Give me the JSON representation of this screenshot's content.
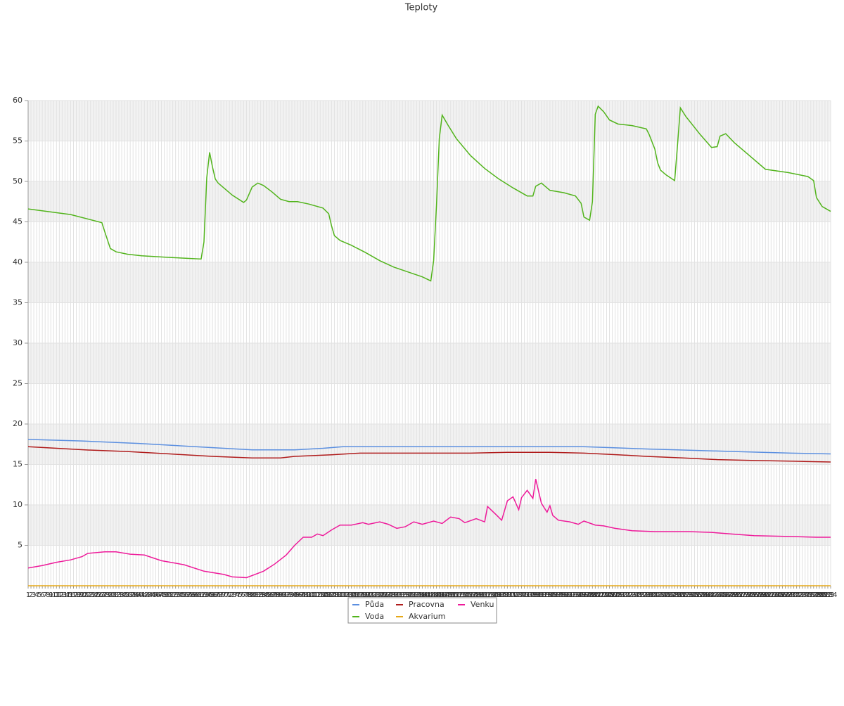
{
  "chart_data": {
    "type": "line",
    "title": "Teploty",
    "xlim": [
      1,
      284
    ],
    "xticks": [
      1,
      2,
      3,
      4,
      5,
      6,
      7,
      8,
      9,
      10,
      11,
      12,
      13,
      14,
      15,
      16,
      17,
      18,
      19,
      20,
      21,
      22,
      23,
      24,
      25,
      26,
      27,
      28,
      29,
      30,
      31,
      32,
      33,
      34,
      35,
      36,
      37,
      38,
      39,
      40,
      41,
      42,
      43,
      44,
      45,
      46,
      47,
      48,
      49,
      50,
      51,
      52,
      53,
      54,
      55,
      56,
      57,
      58,
      59,
      60,
      61,
      62,
      63,
      64,
      65,
      66,
      67,
      68,
      69,
      70,
      71,
      72,
      73,
      74,
      75,
      76,
      77,
      78,
      79,
      80,
      81,
      82,
      83,
      84,
      85,
      86,
      87,
      88,
      89,
      90,
      91,
      92,
      93,
      94,
      95,
      96,
      97,
      98,
      99,
      100,
      101,
      102,
      103,
      104,
      105,
      106,
      107,
      108,
      109,
      110,
      111,
      112,
      113,
      114,
      115,
      116,
      117,
      118,
      119,
      120,
      121,
      122,
      123,
      124,
      125,
      126,
      127,
      128,
      129,
      130,
      131,
      132,
      133,
      134,
      135,
      136,
      137,
      138,
      139,
      140,
      141,
      142,
      143,
      144,
      145,
      146,
      147,
      148,
      149,
      150,
      151,
      152,
      153,
      154,
      155,
      156,
      157,
      158,
      159,
      160,
      161,
      162,
      163,
      164,
      165,
      166,
      167,
      168,
      169,
      170,
      171,
      172,
      173,
      174,
      175,
      176,
      177,
      178,
      179,
      180,
      181,
      182,
      183,
      184,
      185,
      186,
      187,
      188,
      189,
      190,
      191,
      192,
      193,
      194,
      195,
      196,
      197,
      198,
      199,
      200,
      201,
      202,
      203,
      204,
      205,
      206,
      207,
      208,
      209,
      210,
      211,
      212,
      213,
      214,
      215,
      216,
      217,
      218,
      219,
      220,
      221,
      222,
      223,
      224,
      225,
      226,
      227,
      228,
      229,
      230,
      231,
      232,
      233,
      234,
      235,
      236,
      237,
      238,
      239,
      240,
      241,
      242,
      243,
      244,
      245,
      246,
      247,
      248,
      249,
      250,
      251,
      252,
      253,
      254,
      255,
      256,
      257,
      258,
      259,
      260,
      261,
      262,
      263,
      264,
      265,
      266,
      267,
      268,
      269,
      270,
      271,
      272,
      273,
      274,
      275,
      276,
      277,
      278,
      279,
      280,
      281,
      282,
      283,
      284
    ],
    "ylim": [
      0,
      60
    ],
    "yticks": [
      5,
      10,
      15,
      20,
      25,
      30,
      35,
      40,
      45,
      50,
      55,
      60
    ],
    "grid": true,
    "legend": "bottom",
    "series": [
      {
        "name": "Půda",
        "color": "#5b8fe0",
        "x": [
          1,
          20,
          40,
          65,
          80,
          95,
          105,
          112,
          197,
          220,
          230,
          250,
          270,
          284
        ],
        "values": [
          18.1,
          17.9,
          17.6,
          17.1,
          16.8,
          16.8,
          17.0,
          17.2,
          17.2,
          16.9,
          16.8,
          16.6,
          16.4,
          16.3
        ]
      },
      {
        "name": "Pracovna",
        "color": "#b01c1c",
        "x": [
          1,
          21,
          36,
          51,
          66,
          80,
          90,
          95,
          108,
          118,
          157,
          170,
          185,
          197,
          209,
          219,
          232,
          244,
          256,
          271,
          284
        ],
        "values": [
          17.2,
          16.8,
          16.6,
          16.3,
          16.0,
          15.8,
          15.8,
          16.0,
          16.2,
          16.4,
          16.4,
          16.5,
          16.5,
          16.4,
          16.2,
          16.0,
          15.8,
          15.6,
          15.5,
          15.4,
          15.3
        ]
      },
      {
        "name": "Venku",
        "color": "#ee1a9a",
        "x": [
          1,
          6,
          11,
          16,
          20,
          22,
          28,
          32,
          37,
          42,
          48,
          56,
          63,
          70,
          73,
          78,
          81,
          84,
          88,
          92,
          95,
          98,
          101,
          103,
          105,
          108,
          111,
          115,
          119,
          121,
          125,
          128,
          131,
          134,
          137,
          140,
          144,
          147,
          150,
          153,
          155,
          159,
          162,
          163,
          166,
          168,
          170,
          172,
          174,
          175,
          177,
          179,
          180,
          182,
          184,
          185,
          186,
          188,
          192,
          195,
          197,
          201,
          204,
          208,
          214,
          222,
          234,
          242,
          249,
          257,
          269,
          279,
          284
        ],
        "values": [
          2.2,
          2.5,
          2.9,
          3.2,
          3.6,
          4.0,
          4.2,
          4.2,
          3.9,
          3.8,
          3.1,
          2.6,
          1.8,
          1.4,
          1.1,
          1.0,
          1.4,
          1.8,
          2.7,
          3.8,
          5.0,
          6.0,
          6.0,
          6.4,
          6.2,
          6.9,
          7.5,
          7.5,
          7.8,
          7.6,
          7.9,
          7.6,
          7.1,
          7.3,
          7.9,
          7.6,
          8.0,
          7.7,
          8.5,
          8.3,
          7.8,
          8.3,
          7.9,
          9.8,
          8.8,
          8.1,
          10.5,
          11.0,
          9.4,
          10.9,
          11.8,
          10.8,
          13.2,
          10.2,
          9.1,
          9.9,
          8.7,
          8.1,
          7.9,
          7.6,
          8.0,
          7.5,
          7.4,
          7.1,
          6.8,
          6.7,
          6.7,
          6.6,
          6.4,
          6.2,
          6.1,
          6.0,
          6.0
        ]
      },
      {
        "name": "Voda",
        "color": "#52b41c",
        "x": [
          1,
          16,
          27,
          28,
          30,
          32,
          36,
          41,
          51,
          62,
          63,
          64,
          65,
          66,
          67,
          68,
          70,
          73,
          77,
          78,
          80,
          82,
          84,
          87,
          90,
          93,
          96,
          100,
          105,
          107,
          108,
          109,
          111,
          115,
          120,
          125,
          130,
          135,
          140,
          143,
          144,
          145,
          146,
          147,
          149,
          152,
          157,
          162,
          167,
          172,
          177,
          179,
          180,
          182,
          185,
          190,
          194,
          196,
          197,
          199,
          200,
          201,
          202,
          204,
          206,
          209,
          214,
          219,
          220,
          222,
          223,
          224,
          226,
          229,
          230,
          231,
          233,
          238,
          242,
          244,
          245,
          247,
          250,
          254,
          261,
          269,
          276,
          278,
          279,
          281,
          284
        ],
        "values": [
          46.6,
          45.9,
          44.9,
          43.8,
          41.7,
          41.3,
          41.0,
          40.8,
          40.6,
          40.4,
          42.5,
          50.5,
          53.6,
          51.8,
          50.3,
          49.8,
          49.2,
          48.3,
          47.4,
          47.7,
          49.3,
          49.8,
          49.5,
          48.7,
          47.8,
          47.5,
          47.5,
          47.2,
          46.7,
          46.0,
          44.5,
          43.3,
          42.7,
          42.1,
          41.2,
          40.2,
          39.4,
          38.8,
          38.2,
          37.7,
          40.2,
          47.0,
          55.3,
          58.2,
          57.0,
          55.3,
          53.2,
          51.6,
          50.3,
          49.2,
          48.2,
          48.2,
          49.4,
          49.8,
          48.9,
          48.6,
          48.2,
          47.3,
          45.6,
          45.2,
          47.5,
          58.3,
          59.3,
          58.6,
          57.6,
          57.1,
          56.9,
          56.5,
          55.8,
          54.0,
          52.3,
          51.4,
          50.8,
          50.1,
          54.5,
          59.1,
          58.0,
          55.8,
          54.2,
          54.3,
          55.6,
          55.9,
          54.8,
          53.6,
          51.5,
          51.1,
          50.6,
          50.1,
          48.0,
          46.9,
          46.3
        ]
      },
      {
        "name": "Akvarium",
        "color": "#e6a817",
        "x": [
          1,
          284
        ],
        "values": [
          0,
          0
        ]
      }
    ]
  }
}
